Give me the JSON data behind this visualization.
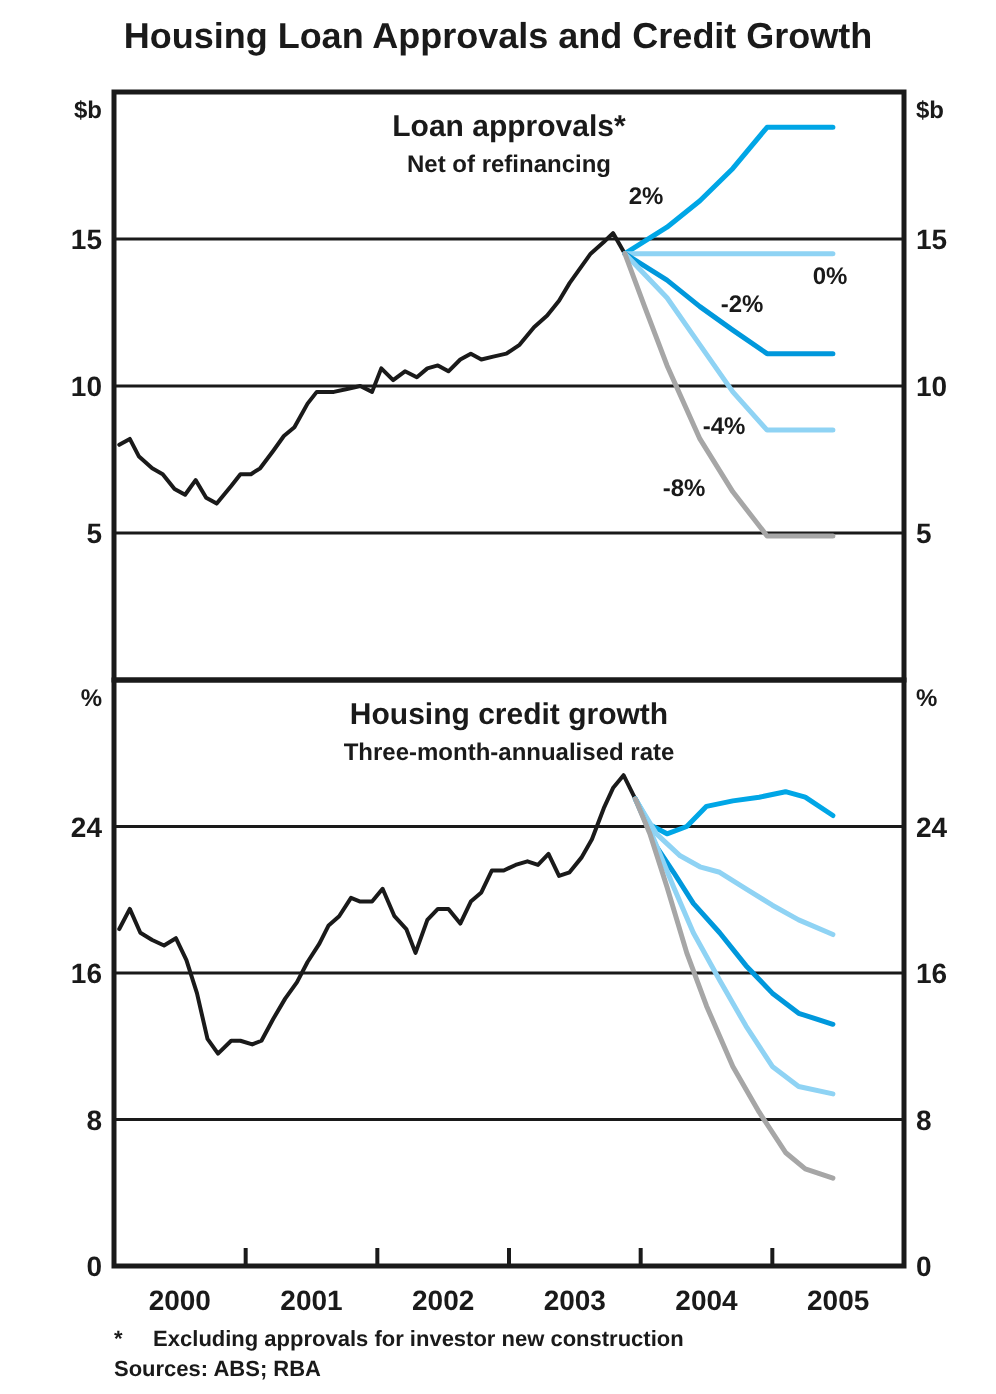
{
  "chart_data": [
    {
      "type": "line",
      "title": "Loan approvals*",
      "subtitle": "Net of refinancing",
      "ylabel": "$b",
      "y2label": "$b",
      "annotations": [
        "Housing Loan Approvals and Credit Growth"
      ],
      "xlim": [
        2000,
        2006
      ],
      "ylim": [
        0,
        20
      ],
      "yticks": [
        5,
        10,
        15
      ],
      "y2lim": [
        0,
        20
      ],
      "y2ticks": [
        5,
        10,
        15
      ],
      "grid": "y",
      "tick_labels": "y",
      "legend": false,
      "line_style": "solid",
      "marker": "none",
      "series": [
        {
          "color": "#1a1a1a",
          "x": [
            2000.04,
            2000.12,
            2000.19,
            2000.29,
            2000.37,
            2000.46,
            2000.54,
            2000.62,
            2000.7,
            2000.78,
            2000.89,
            2000.96,
            2001.04,
            2001.11,
            2001.21,
            2001.29,
            2001.37,
            2001.47,
            2001.54,
            2001.67,
            2001.77,
            2001.87,
            2001.96,
            2002.03,
            2002.12,
            2002.21,
            2002.3,
            2002.38,
            2002.46,
            2002.54,
            2002.63,
            2002.71,
            2002.79,
            2002.88,
            2002.98,
            2003.08,
            2003.19,
            2003.29,
            2003.38,
            2003.46,
            2003.54,
            2003.62,
            2003.72,
            2003.79,
            2003.88
          ],
          "values": [
            8.0,
            8.2,
            7.6,
            7.2,
            7.0,
            6.5,
            6.3,
            6.8,
            6.2,
            6.0,
            6.6,
            7.0,
            7.0,
            7.2,
            7.8,
            8.3,
            8.6,
            9.4,
            9.8,
            9.8,
            9.9,
            10.0,
            9.8,
            10.6,
            10.2,
            10.5,
            10.3,
            10.6,
            10.7,
            10.5,
            10.9,
            11.1,
            10.9,
            11.0,
            11.1,
            11.4,
            12.0,
            12.4,
            12.9,
            13.5,
            14.0,
            14.5,
            14.9,
            15.2,
            14.5
          ]
        },
        {
          "name": "2%",
          "color": "#00a6e6",
          "x": [
            2003.88,
            2004.2,
            2004.45,
            2004.7,
            2004.96,
            2005.46
          ],
          "values": [
            14.5,
            15.4,
            16.3,
            17.4,
            18.8,
            18.8
          ]
        },
        {
          "name": "0%",
          "color": "#8fd3f4",
          "x": [
            2003.88,
            2005.46
          ],
          "values": [
            14.5,
            14.5
          ]
        },
        {
          "name": "-2%",
          "color": "#0098dc",
          "x": [
            2003.88,
            2004.2,
            2004.45,
            2004.7,
            2004.96,
            2005.46
          ],
          "values": [
            14.5,
            13.6,
            12.7,
            11.9,
            11.1,
            11.1
          ]
        },
        {
          "name": "-4%",
          "color": "#8fd3f4",
          "x": [
            2003.88,
            2004.2,
            2004.45,
            2004.7,
            2004.96,
            2005.46
          ],
          "values": [
            14.5,
            13.0,
            11.4,
            9.8,
            8.5,
            8.5
          ]
        },
        {
          "name": "-8%",
          "color": "#a6a6a6",
          "x": [
            2003.88,
            2004.03,
            2004.2,
            2004.45,
            2004.7,
            2004.96,
            2005.46
          ],
          "values": [
            14.5,
            12.7,
            10.7,
            8.2,
            6.4,
            4.9,
            4.9
          ]
        }
      ]
    },
    {
      "type": "line",
      "title": "Housing credit growth",
      "subtitle": "Three-month-annualised rate",
      "ylabel": "%",
      "y2label": "%",
      "annotations": [
        "*     Excluding approvals for investor new construction",
        "Sources: ABS; RBA"
      ],
      "xlim": [
        2000,
        2006
      ],
      "xticks": [
        {
          "value": 2001,
          "label": null
        },
        {
          "value": 2002,
          "label": null
        },
        {
          "value": 2003,
          "label": null
        },
        {
          "value": 2004,
          "label": null
        },
        {
          "value": 2005,
          "label": null
        },
        {
          "value": 2000.5,
          "label": "2000"
        },
        {
          "value": 2001.5,
          "label": "2001"
        },
        {
          "value": 2002.5,
          "label": "2002"
        },
        {
          "value": 2003.5,
          "label": "2003"
        },
        {
          "value": 2004.5,
          "label": "2004"
        },
        {
          "value": 2005.5,
          "label": "2005"
        }
      ],
      "ylim": [
        0,
        32
      ],
      "yticks": [
        0,
        8,
        16,
        24
      ],
      "y2lim": [
        0,
        32
      ],
      "y2ticks": [
        0,
        8,
        16,
        24
      ],
      "grid": "y",
      "legend": false,
      "line_style": "solid",
      "marker": "none",
      "series": [
        {
          "color": "#1a1a1a",
          "x": [
            2000.04,
            2000.12,
            2000.2,
            2000.29,
            2000.38,
            2000.47,
            2000.55,
            2000.63,
            2000.71,
            2000.79,
            2000.89,
            2000.96,
            2001.05,
            2001.12,
            2001.21,
            2001.3,
            2001.39,
            2001.47,
            2001.56,
            2001.63,
            2001.71,
            2001.8,
            2001.87,
            2001.96,
            2002.04,
            2002.13,
            2002.22,
            2002.29,
            2002.38,
            2002.46,
            2002.54,
            2002.63,
            2002.71,
            2002.79,
            2002.87,
            2002.96,
            2003.05,
            2003.14,
            2003.22,
            2003.3,
            2003.38,
            2003.46,
            2003.55,
            2003.63,
            2003.72,
            2003.79,
            2003.87,
            2003.96
          ],
          "values": [
            18.4,
            19.5,
            18.2,
            17.8,
            17.5,
            17.9,
            16.7,
            14.9,
            12.4,
            11.6,
            12.3,
            12.3,
            12.1,
            12.3,
            13.5,
            14.6,
            15.5,
            16.6,
            17.6,
            18.6,
            19.1,
            20.1,
            19.9,
            19.9,
            20.6,
            19.1,
            18.4,
            17.1,
            18.9,
            19.5,
            19.5,
            18.7,
            19.9,
            20.4,
            21.6,
            21.6,
            21.9,
            22.1,
            21.9,
            22.5,
            21.3,
            21.5,
            22.3,
            23.3,
            25.0,
            26.1,
            26.8,
            25.5
          ]
        },
        {
          "color": "#00a6e6",
          "x": [
            2003.96,
            2004.07,
            2004.2,
            2004.35,
            2004.5,
            2004.7,
            2004.9,
            2005.1,
            2005.25,
            2005.46
          ],
          "values": [
            25.5,
            24.1,
            23.6,
            24.0,
            25.1,
            25.4,
            25.6,
            25.9,
            25.6,
            24.6
          ]
        },
        {
          "color": "#8fd3f4",
          "x": [
            2003.96,
            2004.12,
            2004.3,
            2004.45,
            2004.6,
            2004.8,
            2005.0,
            2005.2,
            2005.46
          ],
          "values": [
            25.5,
            23.6,
            22.4,
            21.8,
            21.5,
            20.6,
            19.7,
            18.9,
            18.1
          ]
        },
        {
          "color": "#0098dc",
          "x": [
            2003.96,
            2004.12,
            2004.25,
            2004.4,
            2004.6,
            2004.8,
            2005.0,
            2005.2,
            2005.46
          ],
          "values": [
            25.5,
            22.9,
            21.5,
            19.8,
            18.2,
            16.4,
            14.9,
            13.8,
            13.2
          ]
        },
        {
          "color": "#8fd3f4",
          "x": [
            2003.96,
            2004.1,
            2004.25,
            2004.4,
            2004.6,
            2004.8,
            2005.0,
            2005.2,
            2005.46
          ],
          "values": [
            25.5,
            23.3,
            20.7,
            18.2,
            15.6,
            13.1,
            10.9,
            9.8,
            9.4
          ]
        },
        {
          "color": "#a6a6a6",
          "x": [
            2003.96,
            2004.07,
            2004.2,
            2004.35,
            2004.5,
            2004.7,
            2004.9,
            2005.1,
            2005.25,
            2005.46
          ],
          "values": [
            25.5,
            23.6,
            20.7,
            17.1,
            14.2,
            10.9,
            8.4,
            6.2,
            5.3,
            4.8
          ]
        }
      ]
    }
  ]
}
